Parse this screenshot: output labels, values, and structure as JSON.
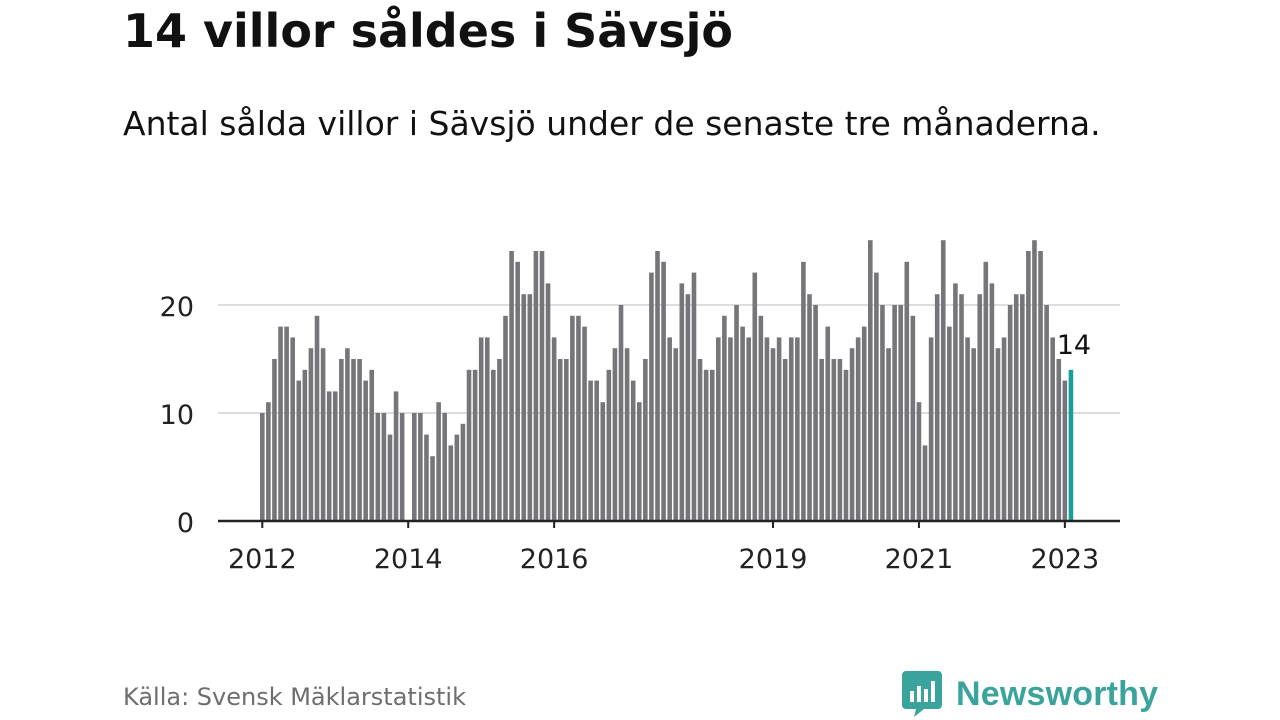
{
  "header": {
    "title": "14 villor såldes i Sävsjö",
    "subtitle": "Antal sålda villor i Sävsjö under de senaste tre månaderna."
  },
  "footer": {
    "source": "Källa: Svensk Mäklarstatistik",
    "brand": "Newsworthy"
  },
  "colors": {
    "bar": "#76757a",
    "highlight": "#1a9e9b",
    "gridline": "#dddddd",
    "axis": "#222222",
    "brand": "#3aa39c"
  },
  "chart_data": {
    "type": "bar",
    "start_month": "2012-01",
    "x_ticks": [
      "2012",
      "2014",
      "2016",
      "2019",
      "2021",
      "2023"
    ],
    "y_ticks": [
      0,
      10,
      20
    ],
    "ylim": [
      0,
      26
    ],
    "grid": true,
    "highlight_label": "14",
    "values": [
      10,
      11,
      15,
      18,
      18,
      17,
      13,
      14,
      16,
      19,
      16,
      12,
      12,
      15,
      16,
      15,
      15,
      13,
      14,
      10,
      10,
      8,
      12,
      10,
      0,
      10,
      10,
      8,
      6,
      11,
      10,
      7,
      8,
      9,
      14,
      14,
      17,
      17,
      14,
      15,
      19,
      25,
      24,
      21,
      21,
      25,
      25,
      22,
      17,
      15,
      15,
      19,
      19,
      18,
      13,
      13,
      11,
      14,
      16,
      20,
      16,
      13,
      11,
      15,
      23,
      25,
      24,
      17,
      16,
      22,
      21,
      23,
      15,
      14,
      14,
      17,
      19,
      17,
      20,
      18,
      17,
      23,
      19,
      17,
      16,
      17,
      15,
      17,
      17,
      24,
      21,
      20,
      15,
      18,
      15,
      15,
      14,
      16,
      17,
      18,
      26,
      23,
      20,
      16,
      20,
      20,
      24,
      19,
      11,
      7,
      17,
      21,
      26,
      18,
      22,
      21,
      17,
      16,
      21,
      24,
      22,
      16,
      17,
      20,
      21,
      21,
      25,
      26,
      25,
      20,
      17,
      15,
      13,
      14
    ]
  }
}
